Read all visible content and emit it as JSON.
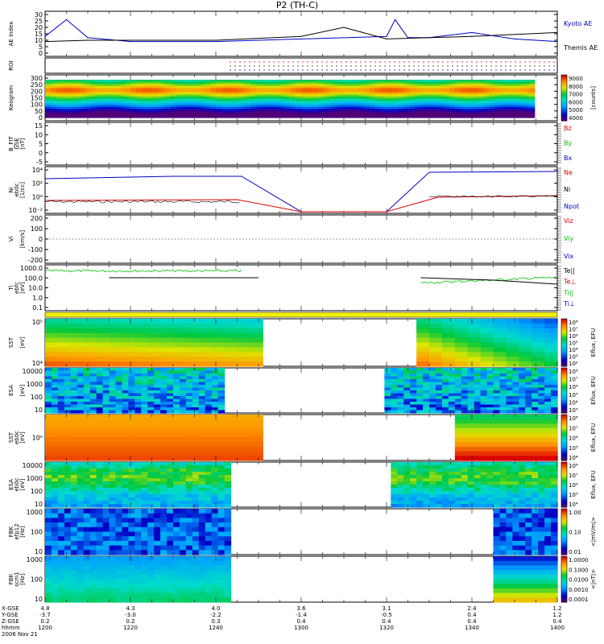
{
  "title": "P2 (TH-C)",
  "colors": {
    "red": "#e00000",
    "green": "#00c000",
    "blue": "#0000c8",
    "black": "#000000"
  },
  "panels": {
    "ae": {
      "ylabel": "AE Index",
      "ticks": [
        "30",
        "25",
        "20",
        "15",
        "10",
        "5",
        "0"
      ],
      "legend": [
        {
          "label": "Kyoto AE",
          "color": "#0000c8"
        },
        {
          "label": "Themis AE",
          "color": "#000000"
        }
      ]
    },
    "roi": {
      "ylabel": "ROI"
    },
    "keogram": {
      "ylabel": "Keogram",
      "ticks": [
        "300",
        "250",
        "200",
        "150",
        "100",
        "50",
        "0"
      ],
      "bar_ticks": [
        "9000",
        "8000",
        "7000",
        "6000",
        "5000",
        "4000"
      ],
      "bar_label": "[counts]"
    },
    "bfit": {
      "ylabel": [
        "B_FIT",
        "GSE",
        "[nT]"
      ],
      "ticks": [
        "15",
        "10",
        "5",
        "0",
        "-5"
      ],
      "legend": [
        {
          "label": "Bz",
          "color": "#e00000"
        },
        {
          "label": "By",
          "color": "#00c000"
        },
        {
          "label": "Bx",
          "color": "#0000c8"
        }
      ]
    },
    "ni": {
      "ylabel": [
        "Ni",
        "eb0c",
        "[1/cc]"
      ],
      "ticks": [
        "10⁴",
        "10²",
        "10⁰",
        "10⁻²"
      ],
      "legend": [
        {
          "label": "Ne",
          "color": "#e00000"
        },
        {
          "label": "Ni",
          "color": "#000000"
        },
        {
          "label": "Npot",
          "color": "#0000c8"
        }
      ]
    },
    "vi": {
      "ylabel": [
        "Vi",
        "",
        "[km/s]"
      ],
      "ticks": [
        "200",
        "100",
        "0",
        "-100",
        "-200"
      ],
      "legend": [
        {
          "label": "Viz",
          "color": "#e00000"
        },
        {
          "label": "Viy",
          "color": "#00c000"
        },
        {
          "label": "Vix",
          "color": "#0000c8"
        }
      ]
    },
    "ti": {
      "ylabel": [
        "Ti",
        "ebfc",
        "[eV]"
      ],
      "ticks": [
        "1000.0",
        "100.0",
        "10.0",
        "1.0",
        "0.1"
      ],
      "legend": [
        {
          "label": "Te||",
          "color": "#000000"
        },
        {
          "label": "Te⊥",
          "color": "#e00000"
        },
        {
          "label": "Ti||",
          "color": "#00c000"
        },
        {
          "label": "Ti⊥",
          "color": "#0000c8"
        }
      ]
    },
    "sst_e": {
      "ylabel": [
        "SST",
        "",
        "[eV]"
      ],
      "ticks": [
        "10⁵",
        "10⁴"
      ],
      "bar_ticks": [
        "10⁸",
        "10⁷",
        "10⁶",
        "10⁵",
        "10⁴",
        "10³",
        "10²"
      ],
      "bar_label": "Eflux, EFU"
    },
    "esa_e": {
      "ylabel": [
        "ESA",
        "",
        "[eV]"
      ],
      "ticks": [
        "10000",
        "1000",
        "100",
        "10"
      ],
      "bar_ticks": [
        "10⁸",
        "10⁷",
        "10⁶",
        "10⁵",
        "10⁴",
        "10³"
      ],
      "bar_label": "Eflux, EFU"
    },
    "sst_i": {
      "ylabel": [
        "SST",
        "eb0c",
        "[eV]"
      ],
      "ticks": [
        "10⁵"
      ],
      "bar_ticks": [
        "10⁸",
        "10⁷",
        "10⁶",
        "10⁵",
        "10⁴"
      ],
      "bar_label": "Eflux, EFU"
    },
    "esa_i": {
      "ylabel": [
        "ESA",
        "eb0c",
        "[eV]"
      ],
      "ticks": [
        "10000",
        "1000",
        "100",
        "10"
      ],
      "bar_ticks": [
        "10⁸",
        "10⁷",
        "10⁶",
        "10⁵",
        "10⁴"
      ],
      "bar_label": "Eflux, EFU"
    },
    "fbk1": {
      "ylabel": [
        "FBK",
        "efp12",
        "[Hz]"
      ],
      "ticks": [
        "1000",
        "100",
        "10"
      ],
      "bar_ticks": [
        "1.00",
        "0.10",
        "0.01"
      ],
      "bar_label": "<|mV/m|>"
    },
    "fbk2": {
      "ylabel": [
        "FBK",
        "scm1",
        "[Hz]"
      ],
      "ticks": [
        "1000",
        "100",
        "10"
      ],
      "bar_ticks": [
        "1.0000",
        "0.1000",
        "0.0100",
        "0.0010",
        "0.0001"
      ],
      "bar_label": "<|nT|>"
    }
  },
  "xaxis": {
    "row_labels": [
      "X-GSE",
      "Y-GSE",
      "Z-GSE",
      "hhmm",
      "2006 Nov 21"
    ],
    "ticks": [
      {
        "x": "4.8",
        "y": "-3.7",
        "z": "0.2",
        "t": "1200"
      },
      {
        "x": "4.3",
        "y": "-3.0",
        "z": "0.2",
        "t": "1220"
      },
      {
        "x": "4.0",
        "y": "-2.2",
        "z": "0.3",
        "t": "1240"
      },
      {
        "x": "3.6",
        "y": "-1.4",
        "z": "0.4",
        "t": "1300"
      },
      {
        "x": "3.1",
        "y": "-0.5",
        "z": "0.4",
        "t": "1320"
      },
      {
        "x": "2.4",
        "y": "0.4",
        "z": "0.4",
        "t": "1340"
      },
      {
        "x": "1.2",
        "y": "1.2",
        "z": "0.4",
        "t": "1400"
      }
    ]
  },
  "chart_data": {
    "type": "line",
    "title": "P2 (TH-C)",
    "date": "2006 Nov 21",
    "x_range": [
      "1200",
      "1400"
    ],
    "series": [
      {
        "name": "Kyoto AE",
        "x": [
          "1200",
          "1205",
          "1210",
          "1220",
          "1240",
          "1300",
          "1320",
          "1322",
          "1325",
          "1330",
          "1340",
          "1350",
          "1400"
        ],
        "values": [
          13,
          26,
          12,
          9,
          9,
          11,
          13,
          26,
          12,
          12,
          16,
          11,
          9
        ]
      },
      {
        "name": "Themis AE",
        "x": [
          "1200",
          "1210",
          "1240",
          "1300",
          "1310",
          "1320",
          "1340",
          "1400"
        ],
        "values": [
          9,
          10,
          10,
          13,
          20,
          11,
          13,
          16
        ]
      }
    ]
  }
}
